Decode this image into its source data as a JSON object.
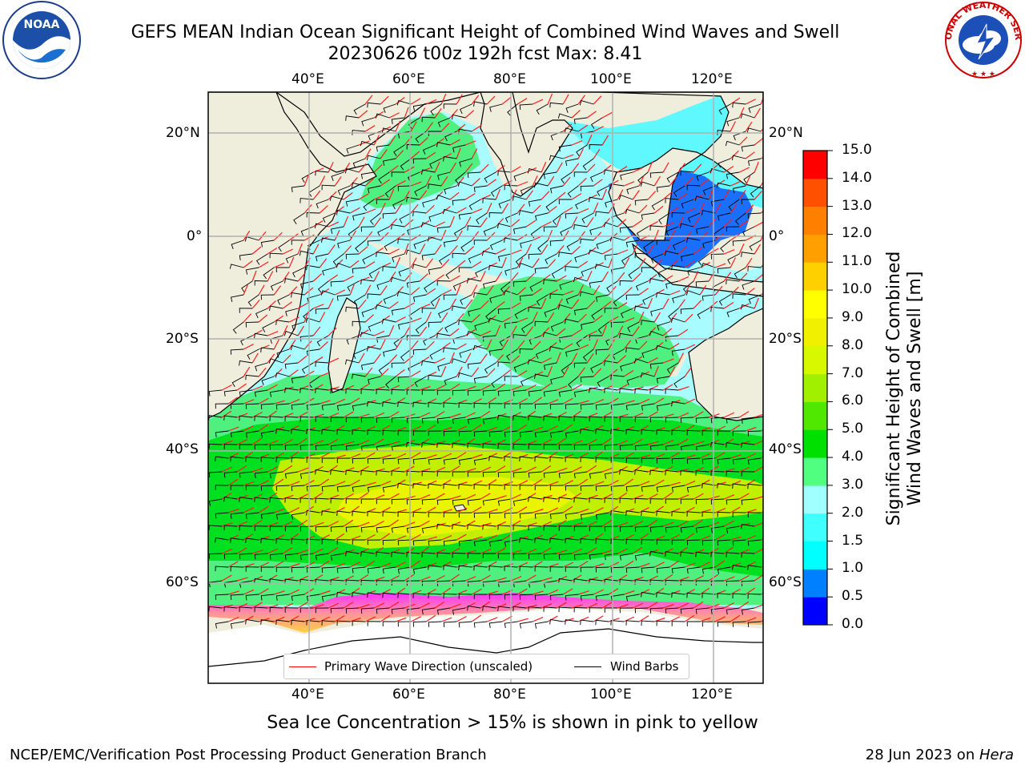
{
  "title_line1": "GEFS MEAN Indian Ocean Significant Height of Combined Wind Waves and Swell",
  "title_line2": "20230626 t00z 192h fcst   Max: 8.41",
  "logos": {
    "left": "noaa-logo",
    "right": "national-weather-service-logo",
    "nws_text": "NATIONAL WEATHER SERVICE"
  },
  "lon_labels": [
    "40°E",
    "60°E",
    "80°E",
    "100°E",
    "120°E"
  ],
  "lat_labels": [
    "20°N",
    "0°",
    "20°S",
    "40°S",
    "60°S"
  ],
  "colorbar": {
    "title_line1": "Significant Height of Combined",
    "title_line2": "Wind Waves and Swell [m]",
    "ticks": [
      "0.0",
      "0.5",
      "1.0",
      "1.5",
      "2.0",
      "3.0",
      "4.0",
      "5.0",
      "6.0",
      "7.0",
      "8.0",
      "9.0",
      "10.0",
      "11.0",
      "12.0",
      "13.0",
      "14.0",
      "15.0"
    ],
    "colors": [
      "#0000ff",
      "#0080ff",
      "#00ffff",
      "#40ffff",
      "#a0ffff",
      "#50ff80",
      "#00e000",
      "#50e800",
      "#a0f000",
      "#d8f800",
      "#f0f000",
      "#ffff00",
      "#ffd000",
      "#ffa000",
      "#ff8000",
      "#ff5000",
      "#ff0000"
    ]
  },
  "legend": {
    "wave_direction": "Primary Wave Direction (unscaled)",
    "wind_barbs": "Wind Barbs",
    "wave_color": "#ff0000",
    "barb_color": "#000000"
  },
  "note": "Sea Ice Concentration > 15% is shown in pink to yellow",
  "footer_left": "NCEP/EMC/Verification Post Processing Product Generation Branch",
  "footer_date": "28 Jun 2023 on ",
  "footer_host": "Hera"
}
